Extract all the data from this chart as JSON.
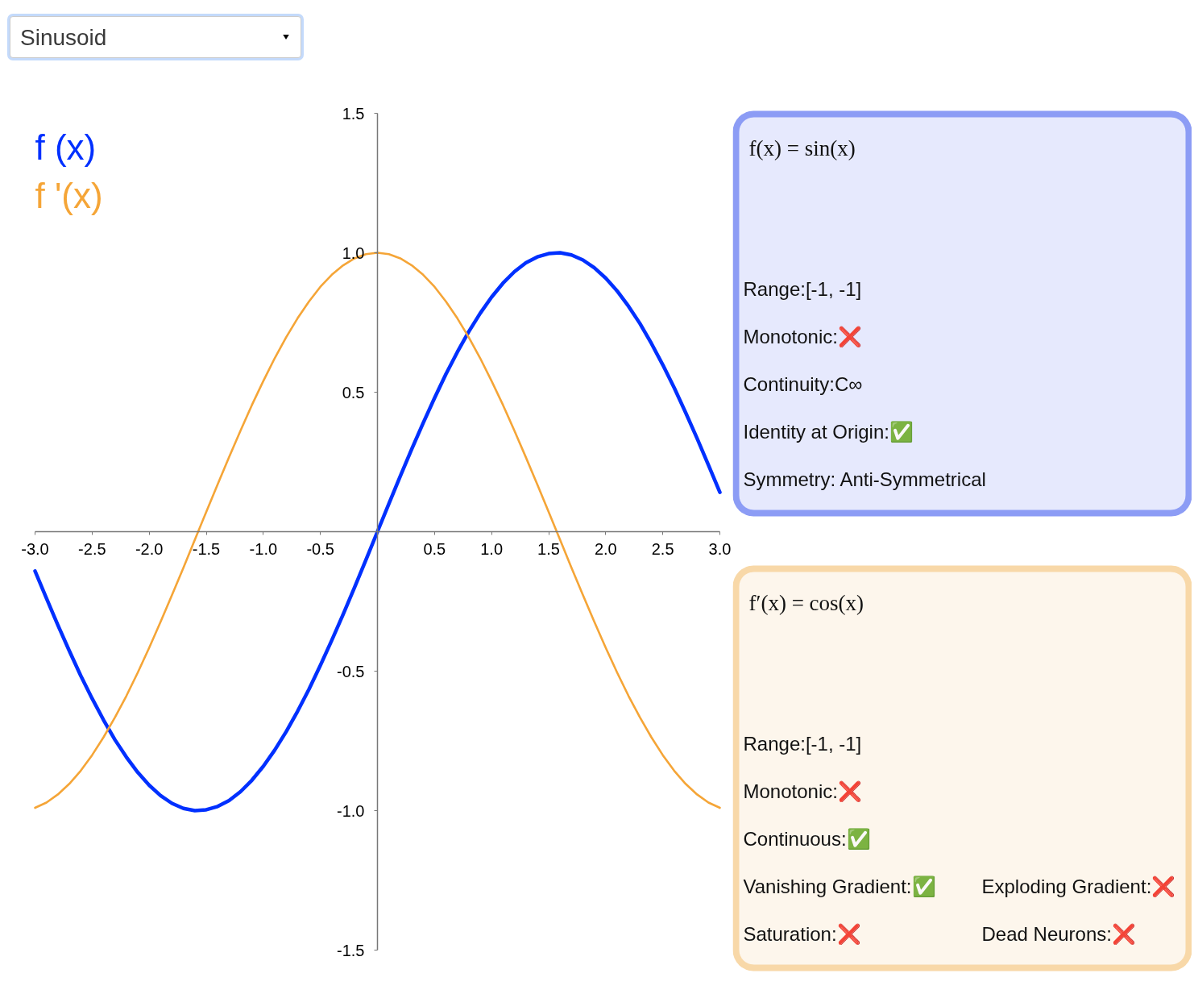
{
  "chart_data": [
    {
      "type": "line",
      "annotations": [
        "Sinusoid"
      ],
      "x": [
        -3.0,
        -2.9,
        -2.8,
        -2.7,
        -2.6,
        -2.5,
        -2.4,
        -2.3,
        -2.2,
        -2.1,
        -2.0,
        -1.9,
        -1.8,
        -1.7,
        -1.6,
        -1.5,
        -1.4,
        -1.3,
        -1.2,
        -1.1,
        -1.0,
        -0.9,
        -0.8,
        -0.7,
        -0.6,
        -0.5,
        -0.4,
        -0.3,
        -0.2,
        -0.1,
        0,
        0.1,
        0.2,
        0.3,
        0.4,
        0.5,
        0.6,
        0.7,
        0.8,
        0.9,
        1.0,
        1.1,
        1.2,
        1.3,
        1.4,
        1.5,
        1.6,
        1.7,
        1.8,
        1.9,
        2.0,
        2.1,
        2.2,
        2.3,
        2.4,
        2.5,
        2.6,
        2.7,
        2.8,
        2.9,
        3.0
      ],
      "series": [
        {
          "name": "f (x)",
          "color": "#0030ff",
          "values": [
            -0.141,
            -0.239,
            -0.335,
            -0.427,
            -0.516,
            -0.598,
            -0.675,
            -0.746,
            -0.808,
            -0.863,
            -0.909,
            -0.946,
            -0.974,
            -0.992,
            -1.0,
            -0.997,
            -0.985,
            -0.964,
            -0.932,
            -0.891,
            -0.841,
            -0.783,
            -0.717,
            -0.644,
            -0.565,
            -0.479,
            -0.389,
            -0.296,
            -0.199,
            -0.1,
            0,
            0.1,
            0.199,
            0.296,
            0.389,
            0.479,
            0.565,
            0.644,
            0.717,
            0.783,
            0.841,
            0.891,
            0.932,
            0.964,
            0.985,
            0.997,
            1.0,
            0.992,
            0.974,
            0.946,
            0.909,
            0.863,
            0.808,
            0.746,
            0.675,
            0.598,
            0.516,
            0.427,
            0.335,
            0.239,
            0.141
          ]
        },
        {
          "name": "f '(x)",
          "color": "#f5a537",
          "values": [
            -0.99,
            -0.971,
            -0.942,
            -0.904,
            -0.857,
            -0.801,
            -0.737,
            -0.666,
            -0.589,
            -0.505,
            -0.416,
            -0.323,
            -0.227,
            -0.129,
            -0.029,
            0.071,
            0.17,
            0.267,
            0.362,
            0.454,
            0.54,
            0.622,
            0.697,
            0.765,
            0.825,
            0.878,
            0.921,
            0.955,
            0.98,
            0.995,
            1.0,
            0.995,
            0.98,
            0.955,
            0.921,
            0.878,
            0.825,
            0.765,
            0.697,
            0.622,
            0.54,
            0.454,
            0.362,
            0.267,
            0.17,
            0.071,
            -0.029,
            -0.129,
            -0.227,
            -0.323,
            -0.416,
            -0.505,
            -0.589,
            -0.666,
            -0.737,
            -0.801,
            -0.857,
            -0.904,
            -0.942,
            -0.971,
            -0.99
          ]
        }
      ],
      "xlim": [
        -3,
        3
      ],
      "ylim": [
        -1.5,
        1.5
      ],
      "xticks": [
        {
          "value": -3,
          "label": "-3.0"
        },
        {
          "value": -2.5,
          "label": "-2.5"
        },
        {
          "value": -2,
          "label": "-2.0"
        },
        {
          "value": -1.5,
          "label": "-1.5"
        },
        {
          "value": -1,
          "label": "-1.0"
        },
        {
          "value": -0.5,
          "label": "-0.5"
        },
        {
          "value": 0.5,
          "label": "0.5"
        },
        {
          "value": 1,
          "label": "1.0"
        },
        {
          "value": 1.5,
          "label": "1.5"
        },
        {
          "value": 2,
          "label": "2.0"
        },
        {
          "value": 2.5,
          "label": "2.5"
        },
        {
          "value": 3,
          "label": "3.0"
        }
      ],
      "yticks": [
        {
          "value": -1.5,
          "label": "-1.5"
        },
        {
          "value": -1,
          "label": "-1.0"
        },
        {
          "value": -0.5,
          "label": "-0.5"
        },
        {
          "value": 0.5,
          "label": "0.5"
        },
        {
          "value": 1,
          "label": "1.0"
        },
        {
          "value": 1.5,
          "label": "1.5"
        }
      ],
      "legend": "top left",
      "line_style": "solid"
    },
    {
      "type": "other",
      "title": "f(x) = sin(x)",
      "color": "#8c9cf5",
      "annotations": [
        "Range:[-1, -1]",
        "Monotonic:❌",
        "Continuity:C∞",
        "Identity at Origin:✅",
        "Symmetry: Anti-Symmetrical"
      ]
    },
    {
      "type": "other",
      "title": "f′(x) = cos(x)",
      "color": "#f8d8a8",
      "annotations": [
        "Range:[-1, -1]",
        "Monotonic:❌",
        "Continuous:✅",
        "Vanishing Gradient:✅",
        "Exploding Gradient:❌",
        "Saturation:❌",
        "Dead Neurons:❌"
      ]
    }
  ]
}
